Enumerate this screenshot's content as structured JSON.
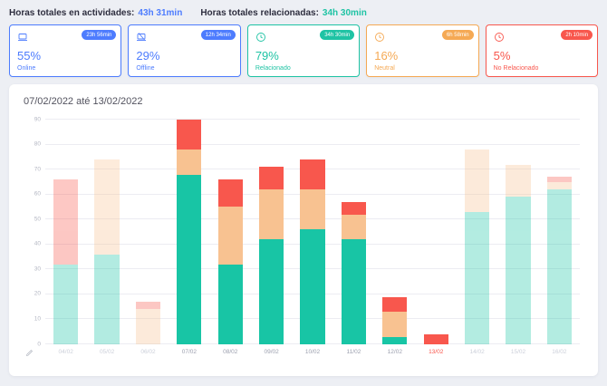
{
  "header": {
    "activities_label": "Horas totales en actividades:",
    "activities_value": "43h 31min",
    "related_label": "Horas totales relacionadas:",
    "related_value": "34h 30min"
  },
  "cards": [
    {
      "badge": "23h 56min",
      "percent": "55%",
      "label": "Online",
      "color": "#4d7cfe",
      "icon": "laptop-icon"
    },
    {
      "badge": "12h 34min",
      "percent": "29%",
      "label": "Offline",
      "color": "#4d7cfe",
      "icon": "laptop-off-icon"
    },
    {
      "badge": "34h 30min",
      "percent": "79%",
      "label": "Relacionado",
      "color": "#1fc3a4",
      "icon": "clock-icon"
    },
    {
      "badge": "6h 58min",
      "percent": "16%",
      "label": "Neutral",
      "color": "#f5a954",
      "icon": "clock-icon"
    },
    {
      "badge": "2h 10min",
      "percent": "5%",
      "label": "No Relacionado",
      "color": "#f8574d",
      "icon": "clock-icon"
    }
  ],
  "chart": {
    "title": "07/02/2022 até 13/02/2022"
  },
  "chart_data": {
    "type": "bar",
    "stacked": true,
    "title": "07/02/2022 até 13/02/2022",
    "categories": [
      "04/02",
      "05/02",
      "06/02",
      "07/02",
      "08/02",
      "09/02",
      "10/02",
      "11/02",
      "12/02",
      "13/02",
      "14/02",
      "15/02",
      "16/02"
    ],
    "series": [
      {
        "name": "Relacionado",
        "color": "#18c5a5",
        "values": [
          32,
          36,
          0,
          68,
          32,
          42,
          46,
          42,
          3,
          0,
          53,
          59,
          62
        ]
      },
      {
        "name": "Neutral",
        "color": "#f8c291",
        "values": [
          0,
          38,
          14,
          10,
          23,
          20,
          16,
          10,
          10,
          0,
          25,
          13,
          3
        ]
      },
      {
        "name": "No Relacionado",
        "color": "#f8574d",
        "values": [
          34,
          0,
          3,
          12,
          11,
          9,
          12,
          5,
          6,
          4,
          0,
          0,
          2
        ]
      }
    ],
    "faded": [
      true,
      true,
      true,
      false,
      false,
      false,
      false,
      false,
      false,
      false,
      true,
      true,
      true
    ],
    "highlight_category": "13/02",
    "ylim": [
      0,
      90
    ],
    "ytick_step": 10,
    "grid": true,
    "legend": "none"
  }
}
